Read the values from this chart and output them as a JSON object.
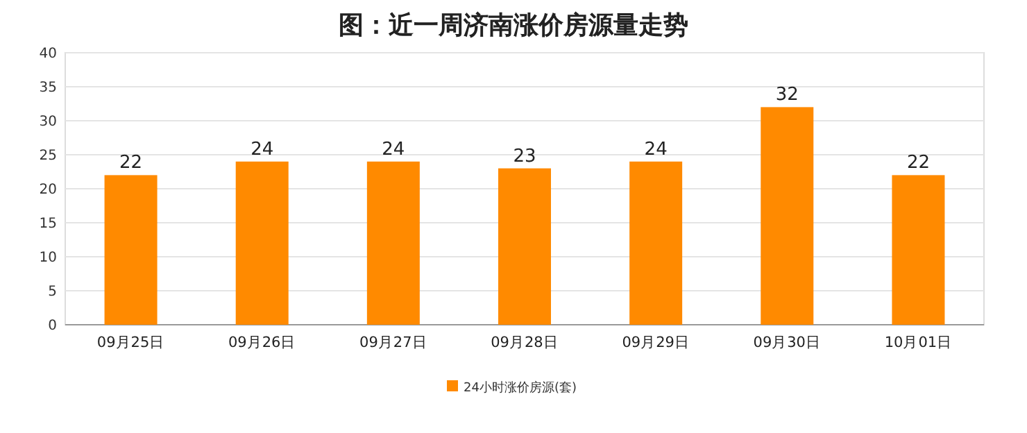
{
  "chart_data": {
    "type": "bar",
    "title": "图：近一周济南涨价房源量走势",
    "categories": [
      "09月25日",
      "09月26日",
      "09月27日",
      "09月28日",
      "09月29日",
      "09月30日",
      "10月01日"
    ],
    "series": [
      {
        "name": "24小时涨价房源(套)",
        "color": "#ff8a00",
        "values": [
          22,
          24,
          24,
          23,
          24,
          32,
          22
        ]
      }
    ],
    "ylim": [
      0,
      40
    ],
    "yticks": [
      0,
      5,
      10,
      15,
      20,
      25,
      30,
      35,
      40
    ],
    "grid": "y",
    "legend": "bottom",
    "data_labels": true
  }
}
